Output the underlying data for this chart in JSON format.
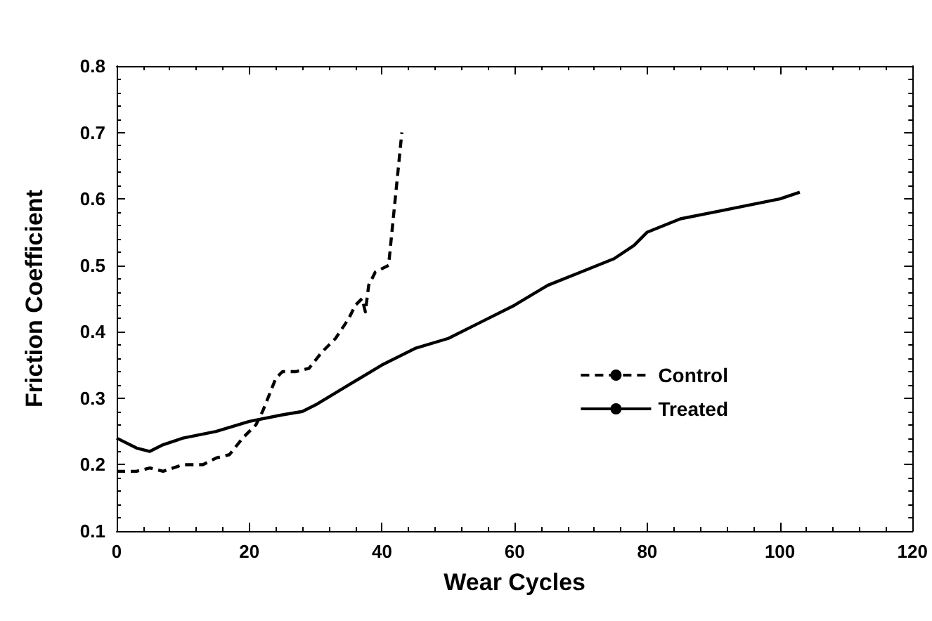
{
  "chart_data": {
    "type": "line",
    "xlabel": "Wear Cycles",
    "ylabel": "Friction Coefficient",
    "xlim": [
      0,
      120
    ],
    "xticks": [
      0,
      20,
      40,
      60,
      80,
      100,
      120
    ],
    "ylim": [
      0.1,
      0.8
    ],
    "yticks": [
      0.1,
      0.2,
      0.3,
      0.4,
      0.5,
      0.6,
      0.7,
      0.8
    ],
    "grid": false,
    "legend": "right",
    "marker": "none",
    "series": [
      {
        "name": "Control",
        "color": "#000000",
        "line_style": "dashed",
        "x": [
          0,
          3,
          5,
          7,
          10,
          13,
          15,
          17,
          19,
          21,
          22,
          24,
          25,
          27,
          29,
          31,
          33,
          35,
          36,
          37,
          37.5,
          38,
          39,
          41,
          42,
          43
        ],
        "values": [
          0.19,
          0.19,
          0.195,
          0.19,
          0.2,
          0.2,
          0.21,
          0.215,
          0.24,
          0.26,
          0.28,
          0.33,
          0.34,
          0.34,
          0.345,
          0.37,
          0.39,
          0.42,
          0.44,
          0.45,
          0.43,
          0.47,
          0.49,
          0.5,
          0.6,
          0.7
        ]
      },
      {
        "name": "Treated",
        "color": "#000000",
        "line_style": "solid",
        "x": [
          0,
          3,
          5,
          7,
          10,
          15,
          20,
          25,
          28,
          30,
          35,
          40,
          45,
          50,
          55,
          60,
          65,
          70,
          75,
          78,
          80,
          85,
          90,
          95,
          100,
          103
        ],
        "values": [
          0.24,
          0.225,
          0.22,
          0.23,
          0.24,
          0.25,
          0.265,
          0.275,
          0.28,
          0.29,
          0.32,
          0.35,
          0.375,
          0.39,
          0.415,
          0.44,
          0.47,
          0.49,
          0.51,
          0.53,
          0.55,
          0.57,
          0.58,
          0.59,
          0.6,
          0.61
        ]
      }
    ]
  }
}
